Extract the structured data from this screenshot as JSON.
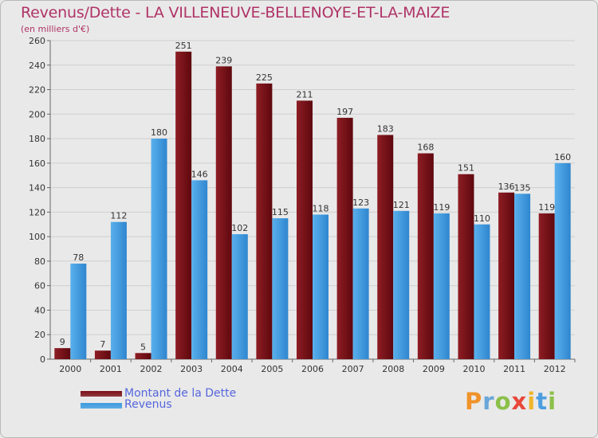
{
  "title": "Revenus/Dette - LA VILLENEUVE-BELLENOYE-ET-LA-MAIZE",
  "subtitle": "(en milliers d'€)",
  "colors": {
    "title": "#b03367",
    "legend_text": "#5566dd",
    "dette": "#7a0f16",
    "revenus": "#3b9be0"
  },
  "logo": {
    "letters": [
      "P",
      "r",
      "o",
      "x",
      "i",
      "t",
      "i"
    ],
    "colors": [
      "#f0932a",
      "#6aa7d8",
      "#8cc04a",
      "#e8473a",
      "#f0b52a",
      "#4c9ee0",
      "#8cc04a"
    ]
  },
  "legend": [
    {
      "label": "Montant de la Dette",
      "color": "#7a0f16"
    },
    {
      "label": "Revenus",
      "color": "#3b9be0"
    }
  ],
  "chart_data": {
    "type": "bar",
    "title": "Revenus/Dette - LA VILLENEUVE-BELLENOYE-ET-LA-MAIZE",
    "subtitle": "(en milliers d'€)",
    "categories": [
      "2000",
      "2001",
      "2002",
      "2003",
      "2004",
      "2005",
      "2006",
      "2007",
      "2008",
      "2009",
      "2010",
      "2011",
      "2012"
    ],
    "series": [
      {
        "name": "Montant de la Dette",
        "values": [
          9,
          7,
          5,
          251,
          239,
          225,
          211,
          197,
          183,
          168,
          151,
          136,
          119
        ]
      },
      {
        "name": "Revenus",
        "values": [
          78,
          112,
          180,
          146,
          102,
          115,
          118,
          123,
          121,
          119,
          110,
          135,
          160
        ]
      }
    ],
    "ylim": [
      0,
      260
    ],
    "yticks": [
      0,
      20,
      40,
      60,
      80,
      100,
      120,
      140,
      160,
      180,
      200,
      220,
      240,
      260
    ],
    "grid": true,
    "legend_position": "bottom-left"
  }
}
